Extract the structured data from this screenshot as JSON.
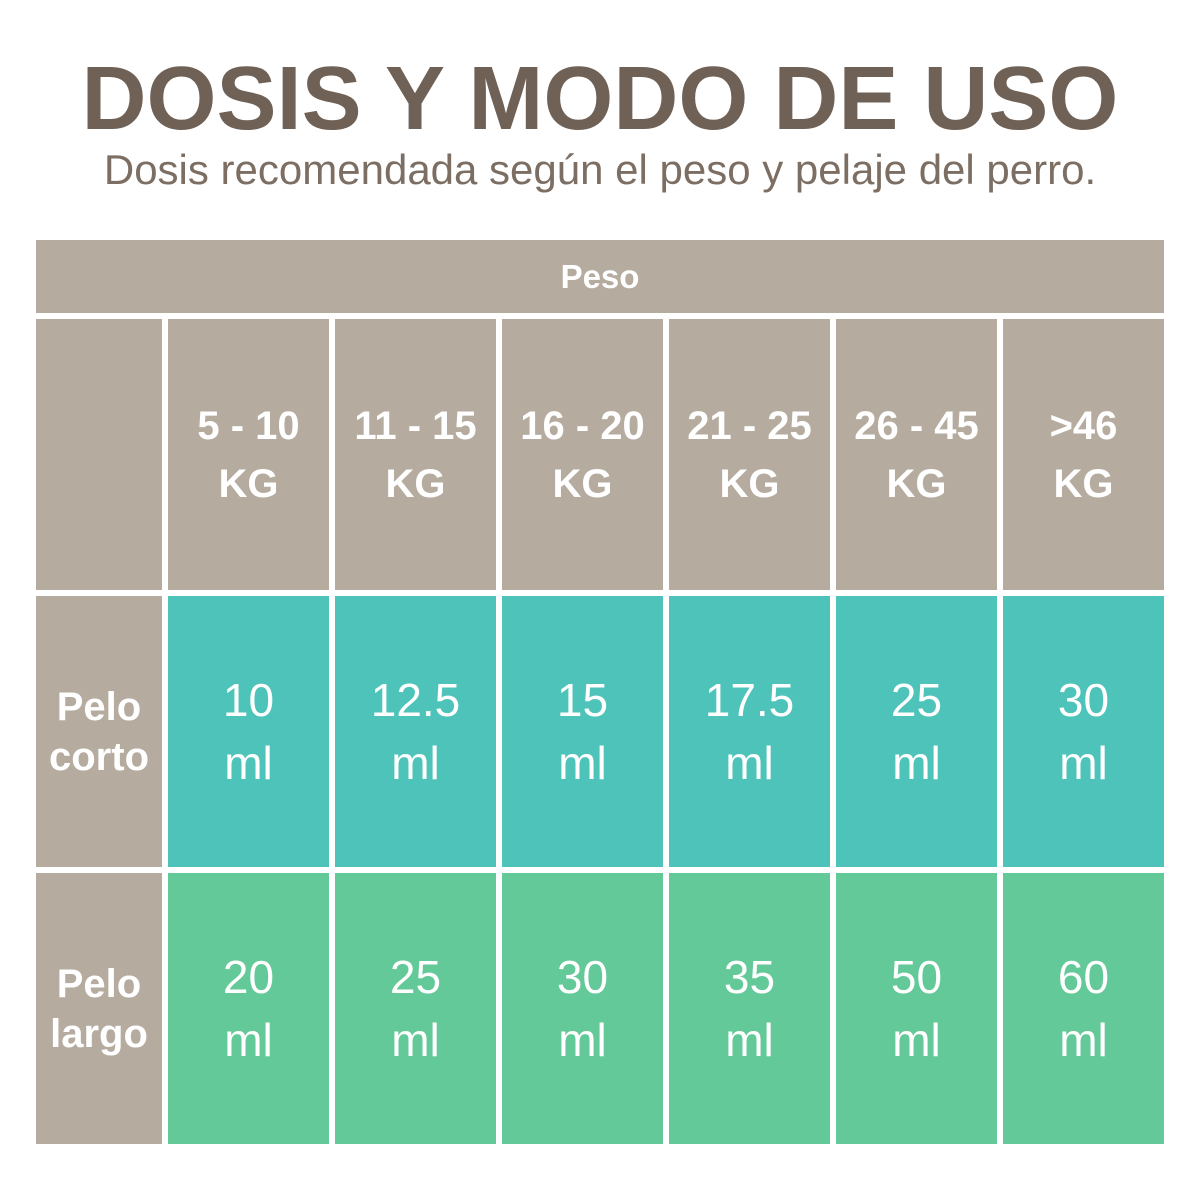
{
  "header": {
    "title": "DOSIS Y MODO DE USO",
    "subtitle": "Dosis recomendada según el peso y pelaje del perro."
  },
  "table": {
    "peso_header": "Peso",
    "weight_columns": [
      {
        "range": "5 - 10",
        "unit": "KG"
      },
      {
        "range": "11 - 15",
        "unit": "KG"
      },
      {
        "range": "16 - 20",
        "unit": "KG"
      },
      {
        "range": "21 - 25",
        "unit": "KG"
      },
      {
        "range": "26 - 45",
        "unit": "KG"
      },
      {
        "range": ">46",
        "unit": "KG"
      }
    ],
    "rows": [
      {
        "label": "Pelo corto",
        "values": [
          {
            "amount": "10",
            "unit": "ml"
          },
          {
            "amount": "12.5",
            "unit": "ml"
          },
          {
            "amount": "15",
            "unit": "ml"
          },
          {
            "amount": "17.5",
            "unit": "ml"
          },
          {
            "amount": "25",
            "unit": "ml"
          },
          {
            "amount": "30",
            "unit": "ml"
          }
        ]
      },
      {
        "label": "Pelo largo",
        "values": [
          {
            "amount": "20",
            "unit": "ml"
          },
          {
            "amount": "25",
            "unit": "ml"
          },
          {
            "amount": "30",
            "unit": "ml"
          },
          {
            "amount": "35",
            "unit": "ml"
          },
          {
            "amount": "50",
            "unit": "ml"
          },
          {
            "amount": "60",
            "unit": "ml"
          }
        ]
      }
    ]
  },
  "colors": {
    "title_text": "#6f6156",
    "subtitle_text": "#7c6e62",
    "header_cell_bg": "#b5ab9f",
    "short_hair_row_bg": "#4dc3ba",
    "long_hair_row_bg": "#63c998",
    "cell_text": "#ffffff",
    "page_bg": "#ffffff"
  },
  "chart_data": {
    "type": "table",
    "title": "DOSIS Y MODO DE USO",
    "subtitle": "Dosis recomendada según el peso y pelaje del perro.",
    "column_group_header": "Peso",
    "columns": [
      "5 - 10 KG",
      "11 - 15 KG",
      "16 - 20 KG",
      "21 - 25 KG",
      "26 - 45 KG",
      ">46 KG"
    ],
    "rows": [
      {
        "label": "Pelo corto",
        "values_ml": [
          10,
          12.5,
          15,
          17.5,
          25,
          30
        ]
      },
      {
        "label": "Pelo largo",
        "values_ml": [
          20,
          25,
          30,
          35,
          50,
          60
        ]
      }
    ],
    "unit": "ml"
  }
}
